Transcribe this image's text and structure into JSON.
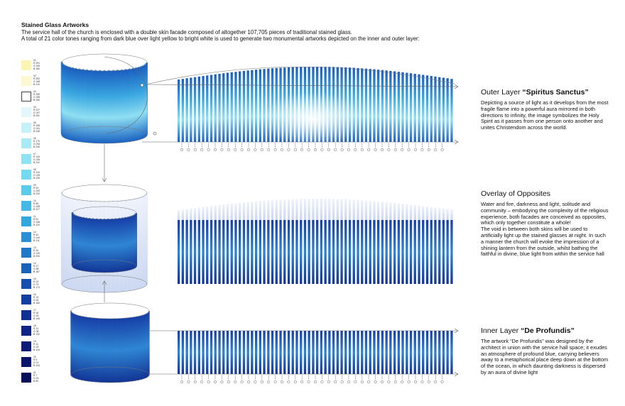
{
  "header": {
    "title": "Stained Glass Artworks",
    "line1": "The service hall of the church is enclosed with a double skin facade composed of altogether 107,705 pieces of traditional stained glass.",
    "line2": "A total of 21 color tones ranging from dark blue over light yellow to bright white is used to generate two monumental artworks depicted on the inner and outer layer:"
  },
  "palette": [
    {
      "color": "#fbf5b4",
      "code": "01\nR 251\nG 245\nB 180"
    },
    {
      "color": "#fcf8d2",
      "code": "02\nR 252\nG 248\nB 210"
    },
    {
      "color": "#ffffff",
      "code": "03\nR 255\nG 255\nB 255"
    },
    {
      "color": "#e3f7fb",
      "code": "04\nR 227\nG 247\nB 251"
    },
    {
      "color": "#c6f1f8",
      "code": "05\nR 198\nG 241\nB 248"
    },
    {
      "color": "#aaeaf5",
      "code": "06\nR 170\nG 234\nB 245"
    },
    {
      "color": "#8fe2f2",
      "code": "07\nR 143\nG 226\nB 242"
    },
    {
      "color": "#73daef",
      "code": "08\nR 115\nG 218\nB 239"
    },
    {
      "color": "#5ccae9",
      "code": "09\nR 92\nG 202\nB 233"
    },
    {
      "color": "#45b9e3",
      "code": "10\nR 69\nG 185\nB 227"
    },
    {
      "color": "#33a6dc",
      "code": "11\nR 51\nG 166\nB 220"
    },
    {
      "color": "#2a90d3",
      "code": "12\nR 42\nG 144\nB 211"
    },
    {
      "color": "#2278c8",
      "code": "13\nR 34\nG 120\nB 200"
    },
    {
      "color": "#1b62bb",
      "code": "14\nR 27\nG 98\nB 187"
    },
    {
      "color": "#174fae",
      "code": "15\nR 23\nG 79\nB 174"
    },
    {
      "color": "#133fa0",
      "code": "16\nR 19\nG 63\nB 160"
    },
    {
      "color": "#103192",
      "code": "17\nR 16\nG 49\nB 146"
    },
    {
      "color": "#0d2684",
      "code": "18\nR 13\nG 38\nB 132"
    },
    {
      "color": "#0b1d76",
      "code": "19\nR 11\nG 29\nB 118"
    },
    {
      "color": "#091568",
      "code": "20\nR 9\nG 21\nB 104"
    },
    {
      "color": "#070f5a",
      "code": "21\nR 7\nG 15\nB 90"
    }
  ],
  "outer": {
    "title_prefix": "Outer Layer ",
    "title_name": "“Spiritus Sanctus”",
    "text": "Depicting a source of light as it develops from the most fragile flame into a powerful aura mirrored in both directions to infinity, the image symbolizes the Holy Spirit as it passes from one person onto another and unites Christendom across the world."
  },
  "overlay": {
    "title": "Overlay of Opposites",
    "text": "Water and fire, darkness and light, solitude and community – embodying the complexity of the religious experience, both facades are conceived as opposites, which only together constitute a whole!\nThe void in between both skins will be used to artificially light up the stained glasses at night. In such a manner the church will evoke the impression of a shining lantern from the outside, whilst bathing the faithful in divine, blue light from within the service hall"
  },
  "inner": {
    "title_prefix": "Inner Layer ",
    "title_name": "“De Profundis”",
    "text": "The artwork “De Profundis” was designed by the architect in union with the service hall space; it exudes an atmosphere of profound blue, carrying believers away to a metaphorical place deep down at the bottom of the ocean, in which daunting darkness is dispersed by an aura of divine light"
  }
}
